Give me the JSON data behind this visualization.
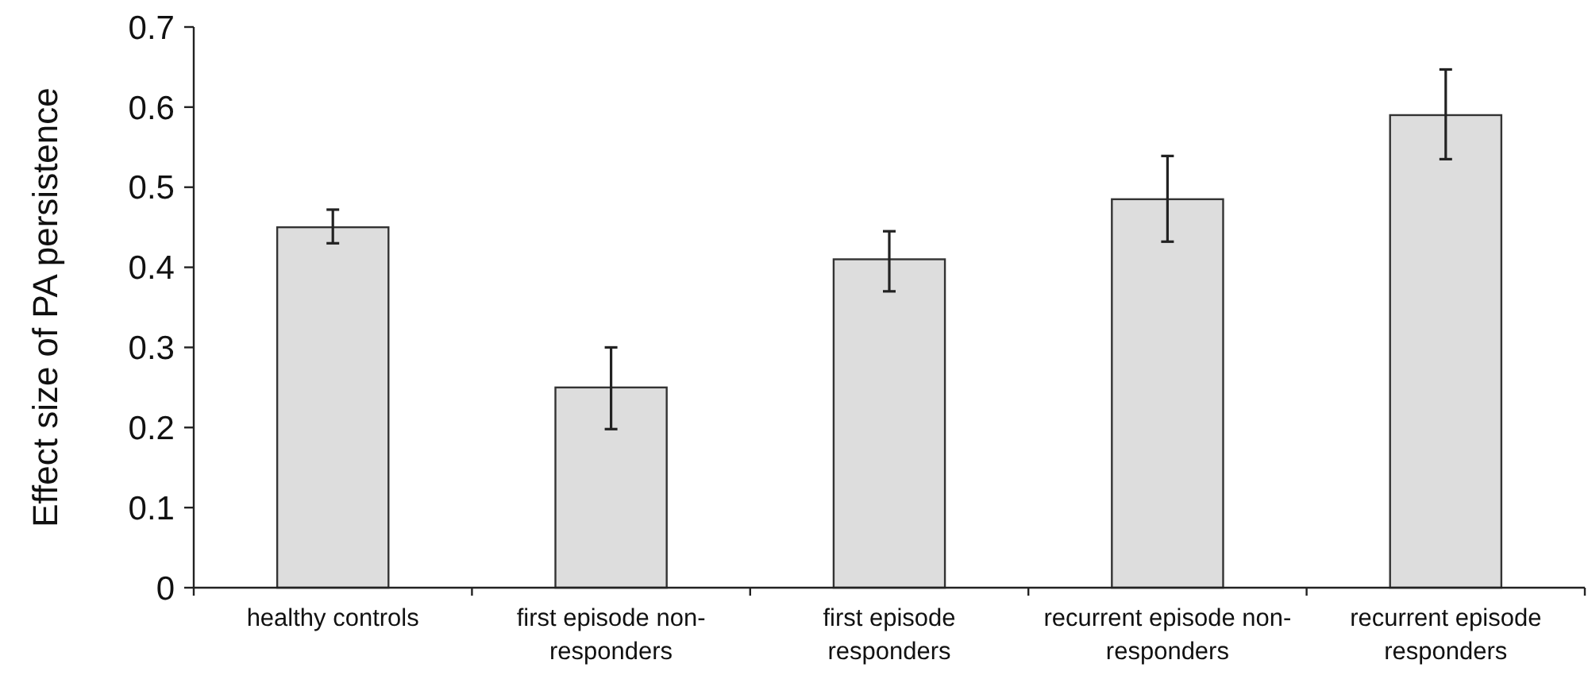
{
  "chart_data": {
    "type": "bar",
    "ylabel": "Effect size of PA persistence",
    "categories": [
      "healthy controls",
      "first episode non-responders",
      "first episode responders",
      "recurrent episode non-responders",
      "recurrent episode responders"
    ],
    "values": [
      0.45,
      0.25,
      0.41,
      0.485,
      0.59
    ],
    "errors": [
      [
        0.43,
        0.472
      ],
      [
        0.198,
        0.3
      ],
      [
        0.37,
        0.445
      ],
      [
        0.432,
        0.539
      ],
      [
        0.535,
        0.647
      ]
    ],
    "color": "#dddddd",
    "ylim": [
      0,
      0.7
    ],
    "yticks": [
      0,
      0.1,
      0.2,
      0.3,
      0.4,
      0.5,
      0.6,
      0.7
    ],
    "grid": false
  }
}
